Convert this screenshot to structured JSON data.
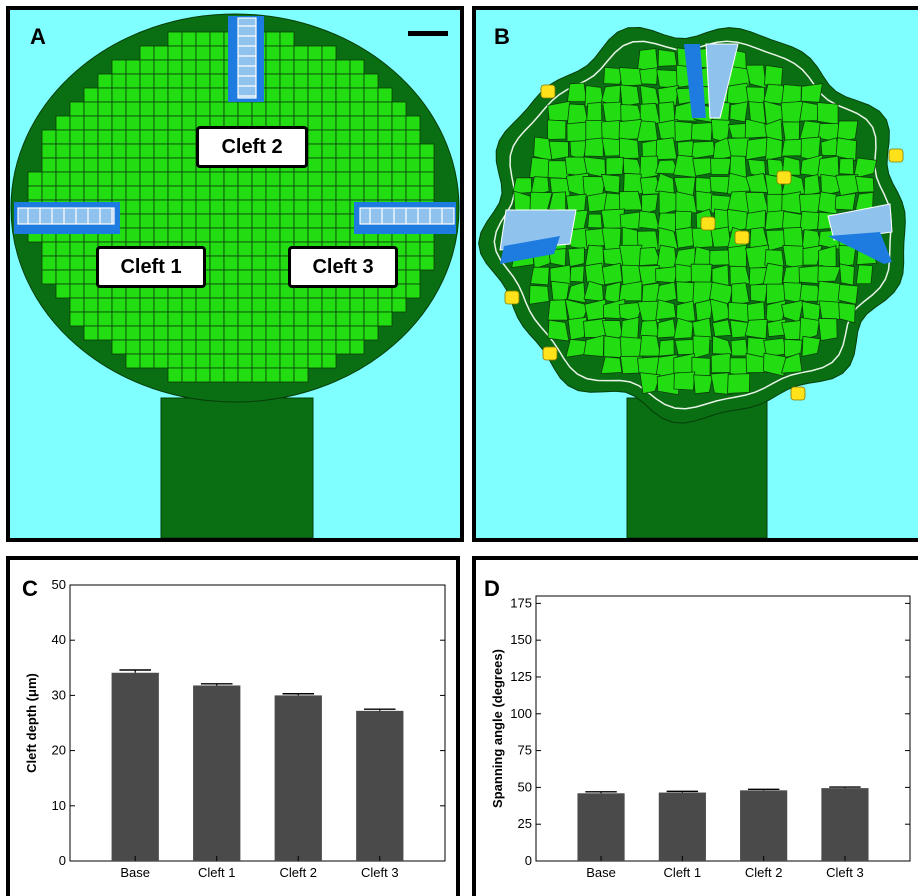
{
  "panels": {
    "a": {
      "letter": "A",
      "labels": [
        "Cleft 1",
        "Cleft 2",
        "Cleft 3"
      ]
    },
    "b": {
      "letter": "B"
    },
    "c": {
      "letter": "C"
    },
    "d": {
      "letter": "D"
    }
  },
  "colors": {
    "background": "#7fffff",
    "cell_light": "#22dd11",
    "cell_dark": "#0a6e12",
    "cleft_blue": "#1e7ce0",
    "cleft_light_blue": "#8fc3ee",
    "yellow_cell": "#ffe21a",
    "bar": "#4a4a4a"
  },
  "chart_data": [
    {
      "type": "bar",
      "panel": "C",
      "categories": [
        "Base",
        "Cleft 1",
        "Cleft 2",
        "Cleft 3"
      ],
      "values": [
        34.1,
        31.8,
        30.0,
        27.2
      ],
      "errors": [
        0.5,
        0.3,
        0.3,
        0.3
      ],
      "ylabel": "Cleft depth (μm)",
      "ylim": [
        0,
        50
      ],
      "yticks": [
        0,
        10,
        20,
        30,
        40,
        50
      ],
      "grid": false
    },
    {
      "type": "bar",
      "panel": "D",
      "categories": [
        "Base",
        "Cleft 1",
        "Cleft 2",
        "Cleft 3"
      ],
      "values": [
        46,
        46.5,
        48,
        49.5
      ],
      "errors": [
        1.0,
        0.8,
        0.7,
        0.7
      ],
      "ylabel": "Spanning angle (degrees)",
      "ylim": [
        0,
        180
      ],
      "yticks": [
        0,
        25,
        50,
        75,
        100,
        125,
        150,
        175
      ],
      "grid": false
    }
  ]
}
